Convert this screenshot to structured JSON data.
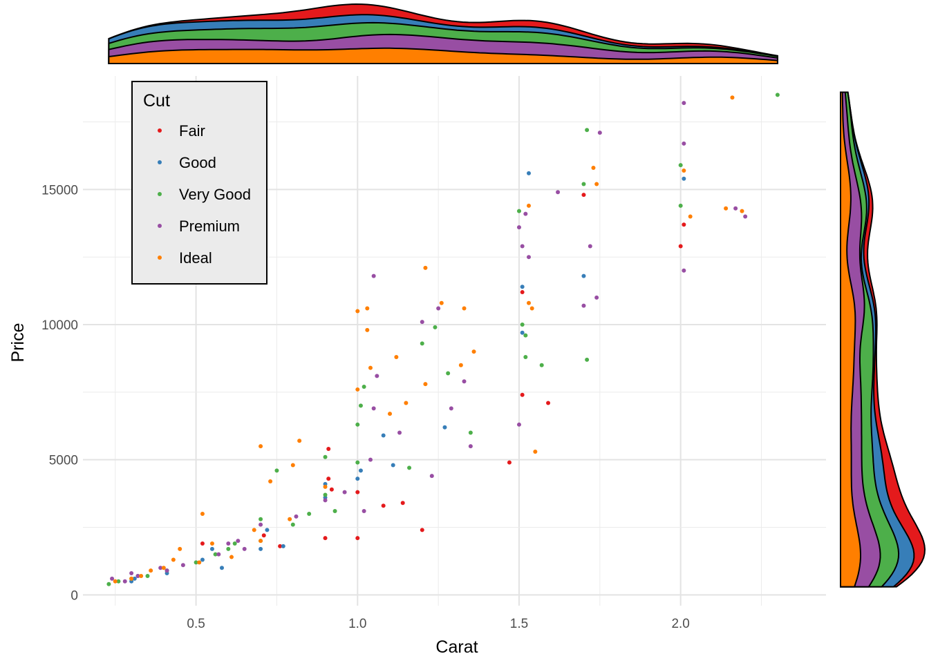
{
  "chart_data": {
    "type": "scatter",
    "title": "",
    "xlabel": "Carat",
    "ylabel": "Price",
    "xlim": [
      0.15,
      2.45
    ],
    "ylim": [
      -400,
      19200
    ],
    "x_ticks": [
      0.5,
      1.0,
      1.5,
      2.0
    ],
    "x_tick_labels": [
      "0.5",
      "1.0",
      "1.5",
      "2.0"
    ],
    "y_ticks": [
      0,
      5000,
      10000,
      15000
    ],
    "y_tick_labels": [
      "0",
      "5000",
      "10000",
      "15000"
    ],
    "grid": true,
    "legend": {
      "title": "Cut",
      "placement": "top-left"
    },
    "marginal_plots": [
      "top: stacked density of carat by cut",
      "right: stacked density of price by cut"
    ],
    "series": [
      {
        "name": "Fair",
        "color": "#E41A1C",
        "points": [
          [
            0.9,
            2100
          ],
          [
            1.0,
            2100
          ],
          [
            0.91,
            4300
          ],
          [
            0.91,
            5400
          ],
          [
            1.08,
            3300
          ],
          [
            1.14,
            3400
          ],
          [
            1.2,
            2400
          ],
          [
            0.92,
            3900
          ],
          [
            1.0,
            3800
          ],
          [
            1.47,
            4900
          ],
          [
            1.51,
            7400
          ],
          [
            1.59,
            7100
          ],
          [
            1.51,
            11200
          ],
          [
            1.7,
            14800
          ],
          [
            2.0,
            12900
          ],
          [
            2.01,
            13700
          ],
          [
            0.76,
            1800
          ],
          [
            0.71,
            2200
          ],
          [
            0.52,
            1900
          ]
        ]
      },
      {
        "name": "Good",
        "color": "#377EB8",
        "points": [
          [
            0.3,
            500
          ],
          [
            0.32,
            700
          ],
          [
            0.41,
            800
          ],
          [
            0.31,
            600
          ],
          [
            0.52,
            1300
          ],
          [
            0.55,
            1700
          ],
          [
            0.7,
            1700
          ],
          [
            0.72,
            2400
          ],
          [
            0.9,
            3600
          ],
          [
            0.9,
            4100
          ],
          [
            1.0,
            4300
          ],
          [
            1.01,
            4600
          ],
          [
            1.08,
            5900
          ],
          [
            1.11,
            4800
          ],
          [
            1.27,
            6200
          ],
          [
            1.51,
            9700
          ],
          [
            1.51,
            11400
          ],
          [
            1.53,
            15600
          ],
          [
            1.7,
            11800
          ],
          [
            2.01,
            15400
          ],
          [
            0.77,
            1800
          ],
          [
            0.58,
            1000
          ]
        ]
      },
      {
        "name": "Very Good",
        "color": "#4DAF4A",
        "points": [
          [
            0.23,
            400
          ],
          [
            0.26,
            500
          ],
          [
            0.3,
            600
          ],
          [
            0.35,
            700
          ],
          [
            0.41,
            900
          ],
          [
            0.5,
            1200
          ],
          [
            0.56,
            1500
          ],
          [
            0.6,
            1700
          ],
          [
            0.7,
            2000
          ],
          [
            0.7,
            2800
          ],
          [
            0.75,
            4600
          ],
          [
            0.8,
            2600
          ],
          [
            0.9,
            3700
          ],
          [
            0.9,
            5100
          ],
          [
            0.93,
            3100
          ],
          [
            1.0,
            4900
          ],
          [
            1.0,
            6300
          ],
          [
            1.01,
            7000
          ],
          [
            1.02,
            7700
          ],
          [
            1.16,
            4700
          ],
          [
            1.2,
            9300
          ],
          [
            1.24,
            9900
          ],
          [
            1.28,
            8200
          ],
          [
            1.35,
            6000
          ],
          [
            1.5,
            14200
          ],
          [
            1.51,
            10000
          ],
          [
            1.52,
            9600
          ],
          [
            1.52,
            8800
          ],
          [
            1.57,
            8500
          ],
          [
            1.7,
            15200
          ],
          [
            1.71,
            17200
          ],
          [
            1.71,
            8700
          ],
          [
            2.0,
            14400
          ],
          [
            2.0,
            15900
          ],
          [
            2.3,
            18500
          ],
          [
            0.85,
            3000
          ],
          [
            0.62,
            1900
          ]
        ]
      },
      {
        "name": "Premium",
        "color": "#984EA3",
        "points": [
          [
            0.24,
            600
          ],
          [
            0.28,
            500
          ],
          [
            0.3,
            800
          ],
          [
            0.32,
            700
          ],
          [
            0.39,
            1000
          ],
          [
            0.41,
            900
          ],
          [
            0.46,
            1100
          ],
          [
            0.57,
            1500
          ],
          [
            0.6,
            1900
          ],
          [
            0.63,
            2000
          ],
          [
            0.7,
            2600
          ],
          [
            0.81,
            2900
          ],
          [
            0.9,
            3500
          ],
          [
            0.96,
            3800
          ],
          [
            1.02,
            3100
          ],
          [
            1.04,
            5000
          ],
          [
            1.05,
            6900
          ],
          [
            1.06,
            8100
          ],
          [
            1.05,
            11800
          ],
          [
            1.13,
            6000
          ],
          [
            1.2,
            10100
          ],
          [
            1.23,
            4400
          ],
          [
            1.25,
            10600
          ],
          [
            1.29,
            6900
          ],
          [
            1.33,
            7900
          ],
          [
            1.35,
            5500
          ],
          [
            1.5,
            6300
          ],
          [
            1.5,
            13600
          ],
          [
            1.51,
            12900
          ],
          [
            1.52,
            14100
          ],
          [
            1.53,
            12500
          ],
          [
            1.62,
            14900
          ],
          [
            1.7,
            10700
          ],
          [
            1.72,
            12900
          ],
          [
            1.74,
            11000
          ],
          [
            1.75,
            17100
          ],
          [
            2.01,
            12000
          ],
          [
            2.01,
            16700
          ],
          [
            2.01,
            18200
          ],
          [
            2.2,
            14000
          ],
          [
            2.17,
            14300
          ],
          [
            0.65,
            1700
          ]
        ]
      },
      {
        "name": "Ideal",
        "color": "#FF7F00",
        "points": [
          [
            0.25,
            500
          ],
          [
            0.3,
            600
          ],
          [
            0.33,
            700
          ],
          [
            0.36,
            900
          ],
          [
            0.4,
            1000
          ],
          [
            0.43,
            1300
          ],
          [
            0.45,
            1700
          ],
          [
            0.51,
            1200
          ],
          [
            0.52,
            3000
          ],
          [
            0.55,
            1900
          ],
          [
            0.7,
            2000
          ],
          [
            0.7,
            5500
          ],
          [
            0.73,
            4200
          ],
          [
            0.79,
            2800
          ],
          [
            0.8,
            4800
          ],
          [
            0.82,
            5700
          ],
          [
            0.9,
            4000
          ],
          [
            1.0,
            7600
          ],
          [
            1.0,
            10500
          ],
          [
            1.03,
            9800
          ],
          [
            1.04,
            8400
          ],
          [
            1.03,
            10600
          ],
          [
            1.1,
            6700
          ],
          [
            1.12,
            8800
          ],
          [
            1.15,
            7100
          ],
          [
            1.21,
            7800
          ],
          [
            1.21,
            12100
          ],
          [
            1.26,
            10800
          ],
          [
            1.32,
            8500
          ],
          [
            1.33,
            10600
          ],
          [
            1.36,
            9000
          ],
          [
            1.53,
            14400
          ],
          [
            1.53,
            10800
          ],
          [
            1.54,
            10600
          ],
          [
            1.55,
            5300
          ],
          [
            1.73,
            15800
          ],
          [
            1.74,
            15200
          ],
          [
            2.01,
            15700
          ],
          [
            2.03,
            14000
          ],
          [
            2.14,
            14300
          ],
          [
            2.16,
            18400
          ],
          [
            2.19,
            14200
          ],
          [
            0.61,
            1400
          ],
          [
            0.68,
            2400
          ]
        ]
      }
    ]
  }
}
